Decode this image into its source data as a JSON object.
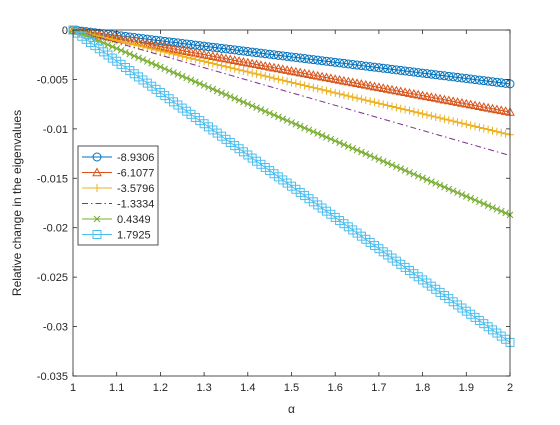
{
  "chart_data": {
    "type": "line",
    "xlabel": "α",
    "ylabel": "Relative change in the eigenvalues",
    "xlim": [
      1,
      2
    ],
    "ylim": [
      -0.035,
      0
    ],
    "xticks": [
      "1",
      "1.1",
      "1.2",
      "1.3",
      "1.4",
      "1.5",
      "1.6",
      "1.7",
      "1.8",
      "1.9",
      "2"
    ],
    "yticks": [
      "0",
      "-0.005",
      "-0.01",
      "-0.015",
      "-0.02",
      "-0.025",
      "-0.03",
      "-0.035"
    ],
    "grid": false,
    "legend_position": "left-middle",
    "x_start": 1,
    "x_end": 2,
    "n_points": 101,
    "series": [
      {
        "name": "-8.9306",
        "color": "#0072BD",
        "marker": "circle",
        "line": "solid",
        "end_value": -0.00545
      },
      {
        "name": "-6.1077",
        "color": "#D95319",
        "marker": "triangle",
        "line": "solid",
        "end_value": -0.0083
      },
      {
        "name": "-3.5796",
        "color": "#EDB120",
        "marker": "plus",
        "line": "solid",
        "end_value": -0.0106
      },
      {
        "name": "-1.3334",
        "color": "#7E2F8E",
        "marker": "none",
        "line": "dashdot",
        "end_value": -0.0127
      },
      {
        "name": "0.4349",
        "color": "#77AC30",
        "marker": "x",
        "line": "solid",
        "end_value": -0.0187
      },
      {
        "name": "1.7925",
        "color": "#4DBEEE",
        "marker": "square",
        "line": "solid",
        "end_value": -0.0316
      }
    ]
  }
}
